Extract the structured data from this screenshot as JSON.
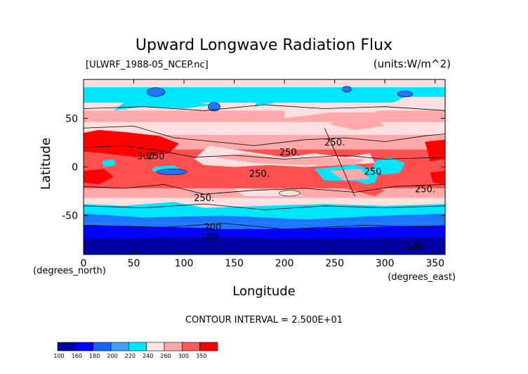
{
  "chart_data": {
    "type": "heatmap",
    "title": "Upward Longwave Radiation Flux",
    "source_label": "[ULWRF_1988-05_NCEP.nc]",
    "units_label": "(units:W/m^2)",
    "xlabel": "Longitude",
    "ylabel": "Latitude",
    "x_unit_label": "(degrees_east)",
    "y_unit_label": "(degrees_north)",
    "xlim": [
      0,
      360
    ],
    "ylim": [
      -90,
      90
    ],
    "x_ticks": [
      "0",
      "50",
      "100",
      "150",
      "200",
      "250",
      "300",
      "350"
    ],
    "x_tick_values": [
      0,
      50,
      100,
      150,
      200,
      250,
      300,
      350
    ],
    "y_ticks": [
      "50",
      "0",
      "-50"
    ],
    "y_tick_values": [
      50,
      0,
      -50
    ],
    "contour_interval_label": "CONTOUR INTERVAL = 2.500E+01",
    "contour_labels": [
      {
        "text": "250.",
        "lon": 250,
        "lat": 22
      },
      {
        "text": "300",
        "lon": 62,
        "lat": 8
      },
      {
        "text": "250",
        "lon": 72,
        "lat": 8
      },
      {
        "text": "250.",
        "lon": 205,
        "lat": 12
      },
      {
        "text": "250.",
        "lon": 175,
        "lat": -10
      },
      {
        "text": "250.",
        "lon": 120,
        "lat": -35
      },
      {
        "text": "200.",
        "lon": 130,
        "lat": -65
      },
      {
        "text": "180",
        "lon": 125,
        "lat": -75
      },
      {
        "text": "250.",
        "lon": 340,
        "lat": -26
      },
      {
        "text": "250",
        "lon": 288,
        "lat": -8
      },
      {
        "text": "140",
        "lon": 330,
        "lat": -85
      }
    ],
    "colorbar": {
      "levels": [
        "100",
        "160",
        "180",
        "200",
        "220",
        "240",
        "260",
        "300",
        "350"
      ],
      "colors": [
        "#0000a0",
        "#0000ff",
        "#1464ff",
        "#3ca0ff",
        "#00e6ff",
        "#ffe6e6",
        "#ffaaaa",
        "#ff5a5a",
        "#ff0000"
      ]
    },
    "band_colors": {
      "polar_south_deep": "#0000a0",
      "polar_south": "#0000ff",
      "south_mid": "#1e78ff",
      "cyan": "#00e6ff",
      "pale": "#ffe0e0",
      "pink": "#ffaaaa",
      "red": "#ff5050",
      "deep_red": "#ff0000"
    }
  }
}
